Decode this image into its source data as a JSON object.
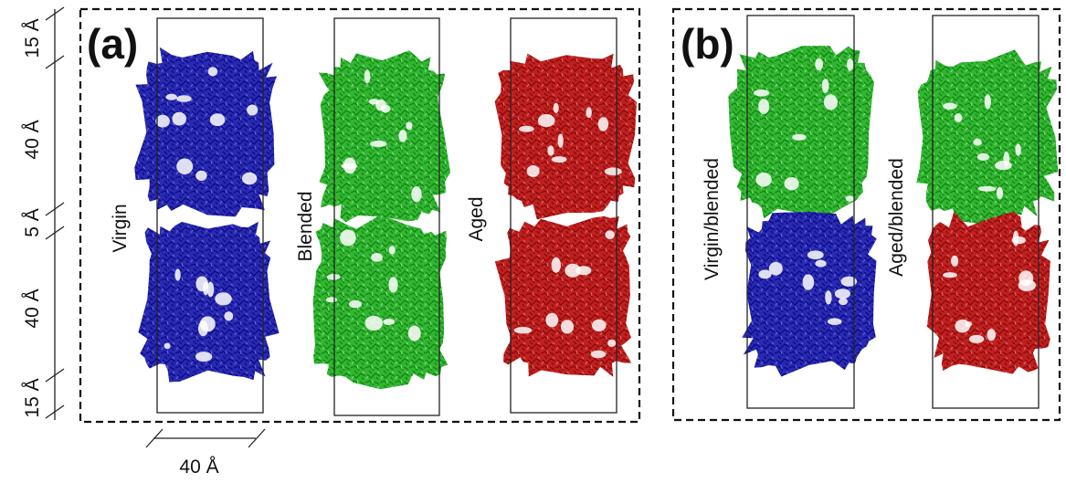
{
  "panels": [
    {
      "label": "(a)",
      "systems": [
        "Virgin",
        "Blended",
        "Aged"
      ]
    },
    {
      "label": "(b)",
      "systems": [
        "Virgin/blended",
        "Aged/blended"
      ]
    }
  ],
  "dimensions": {
    "heights": [
      "15 Å",
      "40 Å",
      "5 Å",
      "40 Å",
      "15 Å"
    ],
    "width": "40 Å"
  }
}
